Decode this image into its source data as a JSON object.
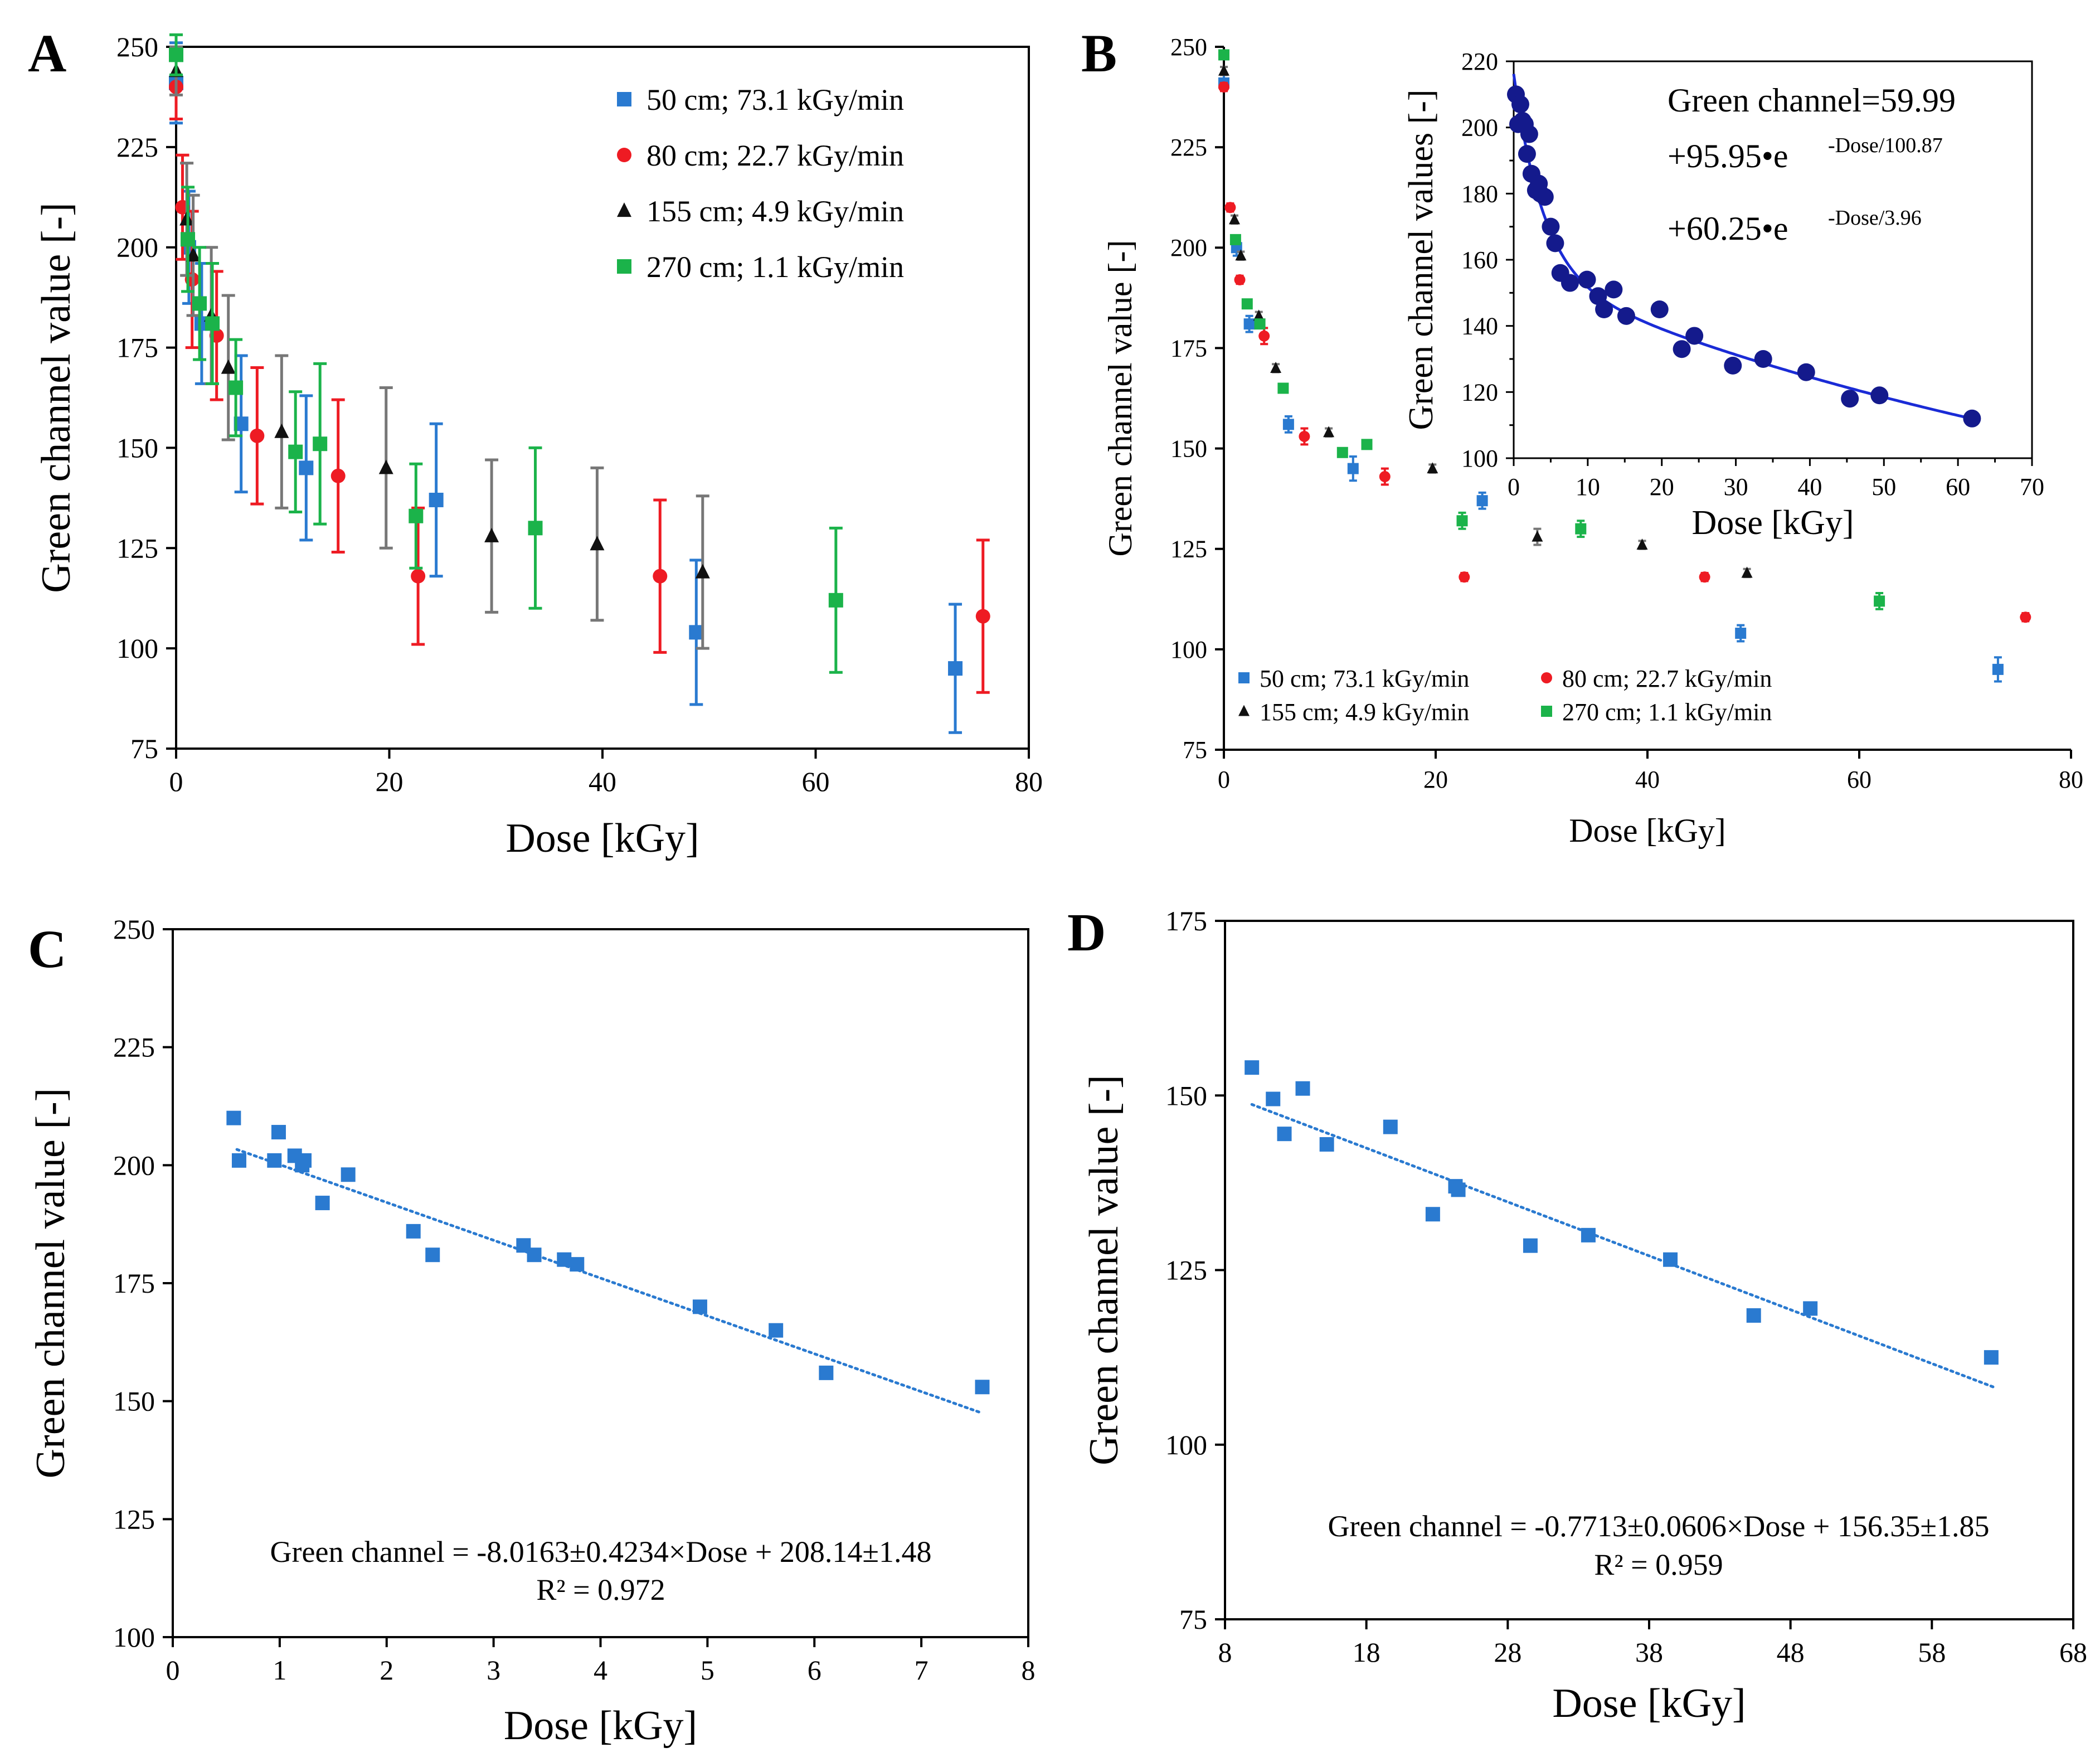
{
  "figure": {
    "colors": {
      "blue": "#2a7ad0",
      "red": "#ee1b23",
      "black": "#111111",
      "green": "#1bb34a",
      "navy": "#141a8c",
      "fitline": "#1a2bd6",
      "trendline": "#2a7ad0",
      "errorbar_black": "#777777"
    }
  },
  "chart_data": [
    {
      "panel": "A",
      "type": "scatter",
      "xlabel": "Dose [kGy]",
      "ylabel": "Green channel value [-]",
      "xlim": [
        0,
        80
      ],
      "ylim": [
        75,
        250
      ],
      "xticks": [
        "0",
        "20",
        "40",
        "60",
        "80"
      ],
      "yticks": [
        "75",
        "100",
        "125",
        "150",
        "175",
        "200",
        "225",
        "250"
      ],
      "legend_position": "top-right",
      "series": [
        {
          "name": "50 cm; 73.1 kGy/min",
          "color": "blue",
          "marker": "square",
          "x": [
            0,
            1.2,
            2.4,
            6.1,
            12.2,
            24.4,
            48.8,
            73.1
          ],
          "y": [
            241,
            200,
            181,
            156,
            145,
            137,
            104,
            95
          ],
          "err": [
            10,
            14,
            15,
            17,
            18,
            19,
            18,
            16
          ]
        },
        {
          "name": "80 cm; 22.7 kGy/min",
          "color": "red",
          "marker": "circle",
          "x": [
            0,
            0.6,
            1.5,
            3.8,
            7.6,
            15.2,
            22.7,
            45.4,
            75.7
          ],
          "y": [
            240,
            210,
            192,
            178,
            153,
            143,
            118,
            118,
            108
          ],
          "err": [
            8,
            13,
            17,
            16,
            17,
            19,
            17,
            19,
            19
          ]
        },
        {
          "name": "155 cm; 4.9 kGy/min",
          "color": "black",
          "marker": "triangle",
          "x": [
            0,
            1.0,
            1.6,
            3.3,
            4.9,
            9.9,
            19.7,
            29.6,
            39.5,
            49.4
          ],
          "y": [
            244,
            207,
            198,
            183,
            170,
            154,
            145,
            128,
            126,
            119
          ],
          "err": [
            6,
            14,
            15,
            17,
            18,
            19,
            20,
            19,
            19,
            19
          ]
        },
        {
          "name": "270 cm; 1.1 kGy/min",
          "color": "green",
          "marker": "square",
          "x": [
            0,
            1.1,
            2.2,
            3.4,
            5.6,
            11.2,
            13.5,
            22.5,
            33.7,
            61.9
          ],
          "y": [
            248,
            202,
            186,
            181,
            165,
            149,
            151,
            133,
            130,
            112
          ],
          "err": [
            5,
            13,
            14,
            15,
            12,
            15,
            20,
            13,
            20,
            18
          ]
        }
      ]
    },
    {
      "panel": "B",
      "type": "scatter",
      "xlabel": "Dose [kGy]",
      "ylabel": "Green channel value [-]",
      "xlim": [
        0,
        80
      ],
      "ylim": [
        75,
        250
      ],
      "xticks": [
        "0",
        "20",
        "40",
        "60",
        "80"
      ],
      "yticks": [
        "75",
        "100",
        "125",
        "150",
        "175",
        "200",
        "225",
        "250"
      ],
      "legend_position": "bottom",
      "series": [
        {
          "name": "50 cm; 73.1 kGy/min",
          "color": "blue",
          "marker": "square",
          "x": [
            0,
            1.2,
            2.4,
            6.1,
            12.2,
            24.4,
            48.8,
            73.1
          ],
          "y": [
            241,
            200,
            181,
            156,
            145,
            137,
            104,
            95
          ],
          "err": [
            2,
            2,
            2,
            2,
            3,
            2,
            2,
            3
          ]
        },
        {
          "name": "80 cm; 22.7 kGy/min",
          "color": "red",
          "marker": "circle",
          "x": [
            0,
            0.6,
            1.5,
            3.8,
            7.6,
            15.2,
            22.7,
            45.4,
            75.7
          ],
          "y": [
            240,
            210,
            192,
            178,
            153,
            143,
            118,
            118,
            108
          ],
          "err": [
            1,
            1,
            1,
            2,
            2,
            2,
            1,
            1,
            1
          ]
        },
        {
          "name": "155 cm; 4.9 kGy/min",
          "color": "black",
          "marker": "triangle",
          "x": [
            0,
            1.0,
            1.6,
            3.3,
            4.9,
            9.9,
            19.7,
            29.6,
            39.5,
            49.4
          ],
          "y": [
            244,
            207,
            198,
            183,
            170,
            154,
            145,
            128,
            126,
            119
          ],
          "err": [
            1,
            1,
            1,
            1,
            1,
            1,
            1,
            2,
            1,
            1
          ]
        },
        {
          "name": "270 cm; 1.1 kGy/min",
          "color": "green",
          "marker": "square",
          "x": [
            0,
            1.1,
            2.2,
            3.4,
            5.6,
            11.2,
            13.5,
            22.5,
            33.7,
            61.9
          ],
          "y": [
            248,
            202,
            186,
            181,
            165,
            149,
            151,
            132,
            130,
            112
          ],
          "err": [
            1,
            1,
            1,
            1,
            1,
            1,
            1,
            2,
            2,
            2
          ]
        }
      ],
      "inset": {
        "type": "scatter",
        "xlabel": "Dose [kGy]",
        "ylabel": "Green channel values [-]",
        "xlim": [
          0,
          70
        ],
        "ylim": [
          100,
          220
        ],
        "xticks": [
          "0",
          "10",
          "20",
          "30",
          "40",
          "50",
          "60",
          "70"
        ],
        "yticks": [
          "100",
          "120",
          "140",
          "160",
          "180",
          "200",
          "220"
        ],
        "equation": [
          "Green channel=59.99",
          "+95.95•e",
          "-Dose/100.87",
          "+60.25•e",
          "-Dose/3.96"
        ],
        "fit": {
          "a": 59.99,
          "b": 95.95,
          "t1": 100.87,
          "c": 60.25,
          "t2": 3.96
        },
        "x": [
          0.3,
          0.6,
          0.9,
          1.2,
          1.5,
          1.8,
          2.1,
          2.4,
          3.0,
          3.4,
          3.6,
          4.2,
          5.0,
          5.6,
          6.3,
          7.6,
          9.9,
          11.4,
          12.2,
          13.5,
          15.2,
          19.7,
          22.7,
          24.4,
          29.6,
          33.7,
          39.5,
          45.4,
          49.4,
          61.9
        ],
        "y": [
          210,
          201,
          207,
          202,
          201,
          192,
          198,
          186,
          181,
          183,
          180,
          179,
          170,
          165,
          156,
          153,
          154,
          149,
          145,
          151,
          143,
          145,
          133,
          137,
          128,
          130,
          126,
          118,
          119,
          112
        ]
      }
    },
    {
      "panel": "C",
      "type": "scatter",
      "xlabel": "Dose [kGy]",
      "ylabel": "Green channel value [-]",
      "xlim": [
        0,
        8
      ],
      "ylim": [
        100,
        250
      ],
      "xticks": [
        "0",
        "1",
        "2",
        "3",
        "4",
        "5",
        "6",
        "7",
        "8"
      ],
      "yticks": [
        "100",
        "125",
        "150",
        "175",
        "200",
        "225",
        "250"
      ],
      "equation": "Green channel = -8.0163±0.4234×Dose + 208.14±1.48",
      "r2": "R² = 0.972",
      "trend": {
        "slope": -8.0163,
        "intercept": 208.14,
        "x0": 0.6,
        "x1": 7.55
      },
      "x": [
        0.57,
        0.62,
        0.95,
        0.99,
        1.14,
        1.21,
        1.23,
        1.4,
        1.64,
        2.25,
        2.43,
        3.28,
        3.38,
        3.66,
        3.78,
        4.93,
        5.64,
        6.11,
        7.57
      ],
      "y": [
        210,
        201,
        201,
        207,
        202,
        200,
        201,
        192,
        198,
        186,
        181,
        183,
        181,
        180,
        179,
        170,
        165,
        156,
        153
      ]
    },
    {
      "panel": "D",
      "type": "scatter",
      "xlabel": "Dose [kGy]",
      "ylabel": "Green channel value [-]",
      "xlim": [
        8,
        68
      ],
      "ylim": [
        75,
        175
      ],
      "xticks": [
        "8",
        "18",
        "28",
        "38",
        "48",
        "58",
        "68"
      ],
      "yticks": [
        "75",
        "100",
        "125",
        "150",
        "175"
      ],
      "equation": "Green channel = -0.7713±0.0606×Dose + 156.35±1.85",
      "r2": "R² = 0.959",
      "trend": {
        "slope": -0.7713,
        "intercept": 156.35,
        "x0": 9.9,
        "x1": 62.5
      },
      "x": [
        9.9,
        11.4,
        12.2,
        13.5,
        15.2,
        19.7,
        22.7,
        24.3,
        24.5,
        29.6,
        33.7,
        39.5,
        45.4,
        49.4,
        62.2
      ],
      "y": [
        154,
        149.5,
        144.5,
        151,
        143,
        145.5,
        133,
        137,
        136.5,
        128.5,
        130,
        126.5,
        118.5,
        119.5,
        112.5
      ]
    }
  ]
}
